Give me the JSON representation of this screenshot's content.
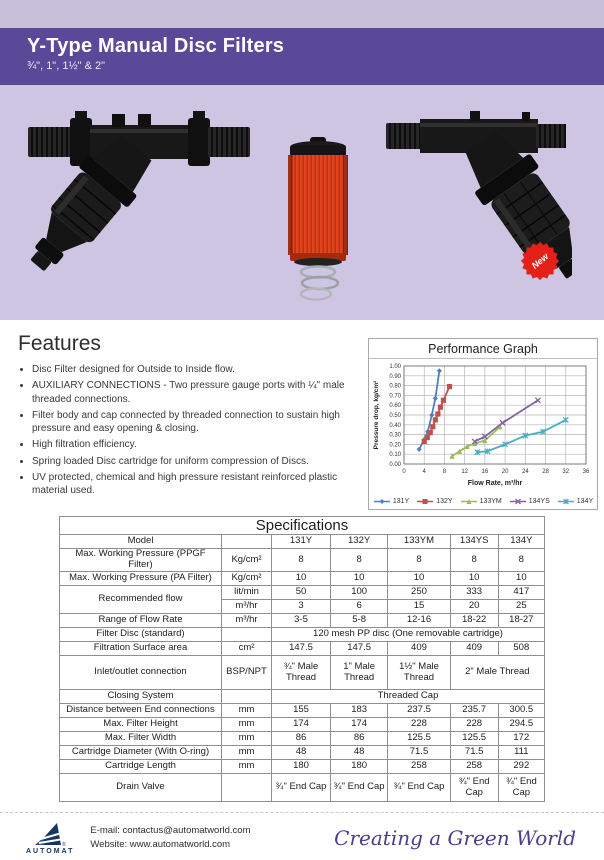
{
  "header": {
    "title": "Y-Type Manual Disc Filters",
    "subtitle": "¾\", 1\", 1½\" & 2\""
  },
  "product_area": {
    "new_badge": "New",
    "cartridge_color": "#e2431c",
    "badge_color": "#e32119",
    "background_color": "#cdc5e1"
  },
  "features": {
    "heading": "Features",
    "items": [
      "Disc Filter designed for Outside to Inside flow.",
      "AUXILIARY CONNECTIONS - Two pressure gauge ports with ¼\" male threaded connections.",
      "Filter body and cap connected by threaded connection to sustain high pressure and easy opening & closing.",
      "High filtration efficiency.",
      "Spring loaded Disc cartridge for uniform compression of Discs.",
      "UV protected, chemical and high pressure resistant reinforced plastic material used."
    ]
  },
  "chart_data": {
    "type": "line",
    "title": "Performance Graph",
    "xlabel": "Flow Rate, m³/hr",
    "ylabel": "Pressure drop, kg/cm²",
    "xlim": [
      0,
      36
    ],
    "ylim": [
      0,
      1.0
    ],
    "xticks": [
      0,
      4,
      8,
      12,
      16,
      20,
      24,
      28,
      32,
      36
    ],
    "yticks": [
      0.0,
      0.1,
      0.2,
      0.3,
      0.4,
      0.5,
      0.6,
      0.7,
      0.8,
      0.9,
      1.0
    ],
    "grid": true,
    "legend_position": "bottom",
    "series": [
      {
        "name": "131Y",
        "color": "#4f81bd",
        "marker": "diamond",
        "points": [
          [
            3,
            0.15
          ],
          [
            4,
            0.25
          ],
          [
            4.7,
            0.33
          ],
          [
            5.5,
            0.5
          ],
          [
            6.2,
            0.67
          ],
          [
            7,
            0.95
          ]
        ]
      },
      {
        "name": "132Y",
        "color": "#c0504d",
        "marker": "square",
        "points": [
          [
            4,
            0.23
          ],
          [
            4.6,
            0.27
          ],
          [
            5.2,
            0.32
          ],
          [
            5.7,
            0.38
          ],
          [
            6.2,
            0.45
          ],
          [
            6.7,
            0.51
          ],
          [
            7.2,
            0.58
          ],
          [
            7.8,
            0.65
          ],
          [
            9,
            0.79
          ]
        ]
      },
      {
        "name": "133YM",
        "color": "#9bbb59",
        "marker": "triangle",
        "points": [
          [
            9.5,
            0.08
          ],
          [
            11,
            0.13
          ],
          [
            12.5,
            0.18
          ],
          [
            14,
            0.21
          ],
          [
            16,
            0.24
          ],
          [
            19,
            0.38
          ]
        ]
      },
      {
        "name": "134YS",
        "color": "#8064a2",
        "marker": "x",
        "points": [
          [
            14,
            0.23
          ],
          [
            16,
            0.28
          ],
          [
            19.5,
            0.42
          ],
          [
            26.5,
            0.65
          ]
        ]
      },
      {
        "name": "134Y",
        "color": "#4bacc6",
        "marker": "star",
        "points": [
          [
            14.5,
            0.12
          ],
          [
            16.5,
            0.13
          ],
          [
            20,
            0.2
          ],
          [
            24,
            0.29
          ],
          [
            27.5,
            0.33
          ],
          [
            32,
            0.45
          ]
        ]
      }
    ]
  },
  "specs": {
    "title": "Specifications",
    "rows": [
      {
        "label": "Model",
        "unit": "",
        "values": [
          "131Y",
          "132Y",
          "133YM",
          "134YS",
          "134Y"
        ]
      },
      {
        "label": "Max. Working Pressure (PPGF Filter)",
        "unit": "Kg/cm²",
        "values": [
          "8",
          "8",
          "8",
          "8",
          "8"
        ]
      },
      {
        "label": "Max. Working Pressure (PA Filter)",
        "unit": "Kg/cm²",
        "values": [
          "10",
          "10",
          "10",
          "10",
          "10"
        ]
      },
      {
        "label": "Recommended flow",
        "label_rowspan": 2,
        "unit": "lit/min",
        "values": [
          "50",
          "100",
          "250",
          "333",
          "417"
        ]
      },
      {
        "label": null,
        "unit": "m³/hr",
        "values": [
          "3",
          "6",
          "15",
          "20",
          "25"
        ]
      },
      {
        "label": "Range of Flow Rate",
        "unit": "m³/hr",
        "values": [
          "3-5",
          "5-8",
          "12-16",
          "18-22",
          "18-27"
        ]
      },
      {
        "label": "Filter Disc (standard)",
        "unit": "",
        "span_value": "120 mesh PP disc (One removable cartridge)"
      },
      {
        "label": "Filtration Surface area",
        "unit": "cm²",
        "values": [
          "147.5",
          "147.5",
          "409",
          "409",
          "508"
        ]
      },
      {
        "label": "Inlet/outlet connection",
        "unit": "BSP/NPT",
        "twoline": true,
        "values": [
          "¾\" Male Thread",
          "1\" Male Thread",
          "1½\" Male Thread",
          {
            "text": "2\" Male Thread",
            "colspan": 2
          }
        ]
      },
      {
        "label": "Closing System",
        "unit": "",
        "span_value": "Threaded Cap"
      },
      {
        "label": "Distance between End connections",
        "unit": "mm",
        "values": [
          "155",
          "183",
          "237.5",
          "235.7",
          "300.5"
        ]
      },
      {
        "label": "Max. Filter Height",
        "unit": "mm",
        "values": [
          "174",
          "174",
          "228",
          "228",
          "294.5"
        ]
      },
      {
        "label": "Max. Filter Width",
        "unit": "mm",
        "values": [
          "86",
          "86",
          "125.5",
          "125.5",
          "172"
        ]
      },
      {
        "label": "Cartridge Diameter (With O-ring)",
        "unit": "mm",
        "values": [
          "48",
          "48",
          "71.5",
          "71.5",
          "111"
        ]
      },
      {
        "label": "Cartridge Length",
        "unit": "mm",
        "values": [
          "180",
          "180",
          "258",
          "258",
          "292"
        ]
      },
      {
        "label": "Drain Valve",
        "unit": "",
        "tall": true,
        "values": [
          "¾\" End Cap",
          "¾\" End Cap",
          "¾\" End Cap",
          "¾\" End Cap",
          "¾\" End Cap"
        ]
      }
    ]
  },
  "footer": {
    "logo_text": "AUTOMAT",
    "email": "E-mail: contactus@automatworld.com",
    "website": "Website: www.automatworld.com",
    "tagline": "Creating a Green World",
    "tagline_color": "#4c3d8f"
  },
  "colors": {
    "header_band": "#594a99",
    "top_strip": "#c8bfdb",
    "product_background": "#cdc5e1",
    "logo_navy": "#16355f"
  }
}
